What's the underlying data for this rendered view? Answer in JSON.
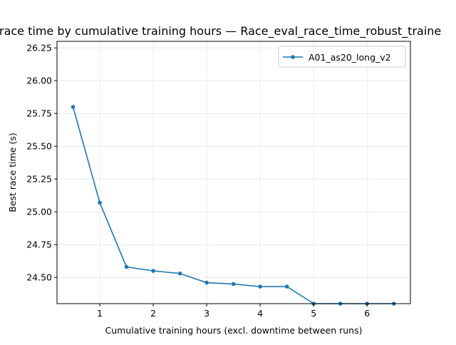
{
  "chart_data": {
    "type": "line",
    "title": "race time by cumulative training hours — Race_eval_race_time_robust_traine",
    "xlabel": "Cumulative training hours (excl. downtime between runs)",
    "ylabel": "Best race time (s)",
    "xlim": [
      0.2,
      6.81
    ],
    "ylim": [
      24.3,
      26.3
    ],
    "xticks": [
      1,
      2,
      3,
      4,
      5,
      6
    ],
    "xtick_labels": [
      "1",
      "2",
      "3",
      "4",
      "5",
      "6"
    ],
    "yticks": [
      24.5,
      24.75,
      25.0,
      25.25,
      25.5,
      25.75,
      26.0,
      26.25
    ],
    "ytick_labels": [
      "24.50",
      "24.75",
      "25.00",
      "25.25",
      "25.50",
      "25.75",
      "26.00",
      "26.25"
    ],
    "grid": true,
    "legend_position": "top-right",
    "series": [
      {
        "name": "A01_as20_long_v2",
        "color": "#1f77b4",
        "marker": "dot",
        "x": [
          0.5,
          1.0,
          1.5,
          2.0,
          2.5,
          3.0,
          3.5,
          4.0,
          4.5,
          5.0,
          5.5,
          6.0,
          6.5
        ],
        "y": [
          25.8,
          25.07,
          24.58,
          24.55,
          24.53,
          24.46,
          24.45,
          24.43,
          24.43,
          24.3,
          24.3,
          24.3,
          24.3
        ]
      }
    ]
  }
}
